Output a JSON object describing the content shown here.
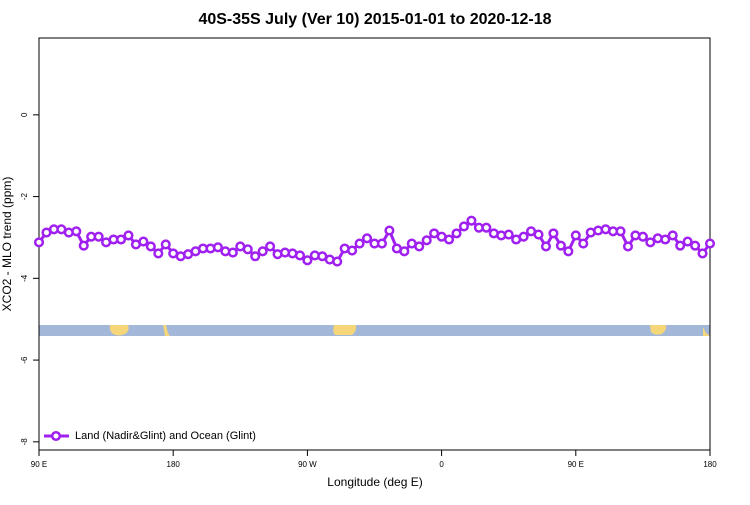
{
  "chart_data": {
    "type": "line",
    "title": "40S-35S July (Ver 10)   2015-01-01 to 2020-12-18",
    "x_label": "Longitude (deg E)",
    "y_label": "XCO2 - MLO trend (ppm)",
    "x": [
      90,
      95,
      100,
      105,
      110,
      115,
      120,
      125,
      130,
      135,
      140,
      145,
      150,
      155,
      160,
      165,
      170,
      175,
      180,
      185,
      190,
      195,
      200,
      205,
      210,
      215,
      220,
      225,
      230,
      235,
      240,
      245,
      250,
      255,
      260,
      265,
      270,
      275,
      280,
      285,
      290,
      295,
      300,
      305,
      310,
      315,
      320,
      325,
      330,
      335,
      340,
      345,
      350,
      355,
      360,
      365,
      370,
      375,
      380,
      385,
      390,
      395,
      400,
      405,
      410,
      415,
      420,
      425,
      430,
      435,
      440,
      445,
      450,
      455,
      460,
      465,
      470,
      475,
      480,
      485,
      490,
      495,
      500,
      505,
      510,
      515,
      520,
      525,
      530,
      535,
      540
    ],
    "series": [
      {
        "name": "Land (Nadir&Glint) and Ocean (Glint)",
        "color": "#a020f0",
        "values": [
          -3.12,
          -2.88,
          -2.8,
          -2.8,
          -2.88,
          -2.85,
          -3.2,
          -2.98,
          -2.98,
          -3.12,
          -3.05,
          -3.05,
          -2.95,
          -3.17,
          -3.1,
          -3.22,
          -3.39,
          -3.17,
          -3.39,
          -3.46,
          -3.41,
          -3.34,
          -3.27,
          -3.27,
          -3.24,
          -3.34,
          -3.37,
          -3.22,
          -3.29,
          -3.46,
          -3.34,
          -3.22,
          -3.41,
          -3.37,
          -3.39,
          -3.44,
          -3.56,
          -3.44,
          -3.46,
          -3.54,
          -3.59,
          -3.27,
          -3.32,
          -3.15,
          -3.02,
          -3.15,
          -3.15,
          -2.83,
          -3.27,
          -3.34,
          -3.15,
          -3.22,
          -3.07,
          -2.9,
          -2.98,
          -3.05,
          -2.9,
          -2.73,
          -2.59,
          -2.76,
          -2.76,
          -2.9,
          -2.95,
          -2.93,
          -3.05,
          -2.98,
          -2.85,
          -2.93,
          -3.22,
          -2.9,
          -3.2,
          -3.34,
          -2.95,
          -3.15,
          -2.88,
          -2.83,
          -2.8,
          -2.85,
          -2.85,
          -3.22,
          -2.95,
          -2.98,
          -3.12,
          -3.02,
          -3.05,
          -2.95,
          -3.2,
          -3.1,
          -3.2,
          -3.39,
          -3.15
        ]
      }
    ],
    "xlim": [
      90,
      540
    ],
    "xticks": [
      {
        "value": 90,
        "label": "90 E"
      },
      180,
      {
        "value": 270,
        "label": "90 W"
      },
      {
        "value": 360,
        "label": "0"
      },
      {
        "value": 450,
        "label": "90 E"
      },
      {
        "value": 540,
        "label": "180"
      }
    ],
    "ylim": [
      -8.2,
      1.88
    ],
    "yticks": [
      -8,
      -6,
      -4,
      -2,
      0
    ],
    "legend": "bottom-left"
  }
}
